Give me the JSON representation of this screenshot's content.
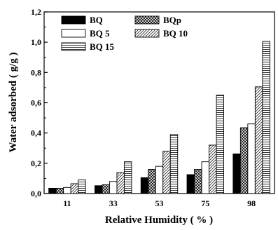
{
  "chart_data": {
    "type": "bar",
    "title": "",
    "xlabel": "Relative Humidity ( % )",
    "ylabel": "Water adsorbed  ( g/g )",
    "categories": [
      "11",
      "33",
      "53",
      "75",
      "98"
    ],
    "ylim": [
      0,
      1.2
    ],
    "yticks": [
      "0,0",
      "0,2",
      "0,4",
      "0,6",
      "0,8",
      "1,0",
      "1,2"
    ],
    "grid": false,
    "legend_position": "top-left",
    "series": [
      {
        "name": "BQ",
        "values": [
          0.035,
          0.052,
          0.105,
          0.125,
          0.262
        ],
        "pattern": "solid"
      },
      {
        "name": "BQp",
        "values": [
          0.035,
          0.058,
          0.16,
          0.16,
          0.435
        ],
        "pattern": "crosshatch"
      },
      {
        "name": "BQ 5",
        "values": [
          0.04,
          0.08,
          0.18,
          0.21,
          0.46
        ],
        "pattern": "white"
      },
      {
        "name": "BQ 10",
        "values": [
          0.065,
          0.138,
          0.28,
          0.32,
          0.705
        ],
        "pattern": "diagonal"
      },
      {
        "name": "BQ 15",
        "values": [
          0.09,
          0.21,
          0.39,
          0.65,
          1.005
        ],
        "pattern": "horizontal"
      }
    ]
  }
}
